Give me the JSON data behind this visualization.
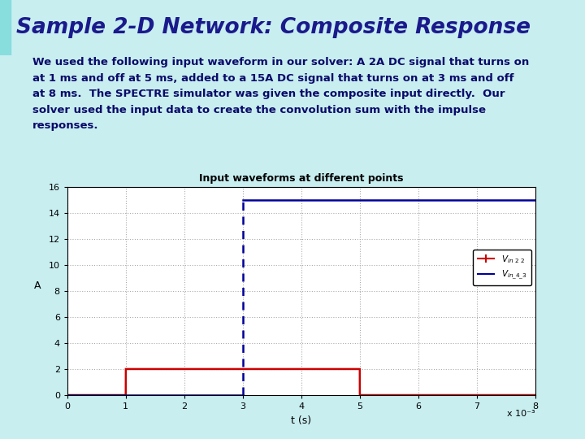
{
  "title": "Sample 2-D Network: Composite Response",
  "description": "We used the following input waveform in our solver: A 2A DC signal that turns on\nat 1 ms and off at 5 ms, added to a 15A DC signal that turns on at 3 ms and off\nat 8 ms.  The SPECTRE simulator was given the composite input directly.  Our\nsolver used the input data to create the convolution sum with the impulse\nresponses.",
  "plot_title": "Input waveforms at different points",
  "xlabel": "t (s)",
  "ylabel": "A",
  "xscale_label": "x 10⁻³",
  "xlim": [
    0,
    8
  ],
  "ylim": [
    0,
    16
  ],
  "yticks": [
    0,
    2,
    4,
    6,
    8,
    10,
    12,
    14,
    16
  ],
  "xticks": [
    0,
    1,
    2,
    3,
    4,
    5,
    6,
    7,
    8
  ],
  "bg_top_color": "#e8f8f8",
  "bg_white": "#ffffff",
  "header_bg": "#ffffff",
  "header_title_color": "#1a1a8c",
  "text_color": "#0a0a6a",
  "signal1_color": "#cc0000",
  "signal2_color": "#000099",
  "legend1": "V_{in\\_2\\_2}",
  "legend2": "V_{in\\_4\\_3}",
  "signal1_t": [
    0,
    0.999,
    1.001,
    5,
    5.001,
    8
  ],
  "signal1_v": [
    0,
    0,
    2,
    2,
    0,
    0
  ],
  "signal2_t_horiz_before": [
    0,
    3
  ],
  "signal2_v_horiz_before": [
    0,
    0
  ],
  "signal2_t_vert": [
    3,
    3
  ],
  "signal2_v_vert": [
    0,
    15
  ],
  "signal2_t_horiz_after": [
    3,
    8
  ],
  "signal2_v_horiz_after": [
    15,
    15
  ]
}
